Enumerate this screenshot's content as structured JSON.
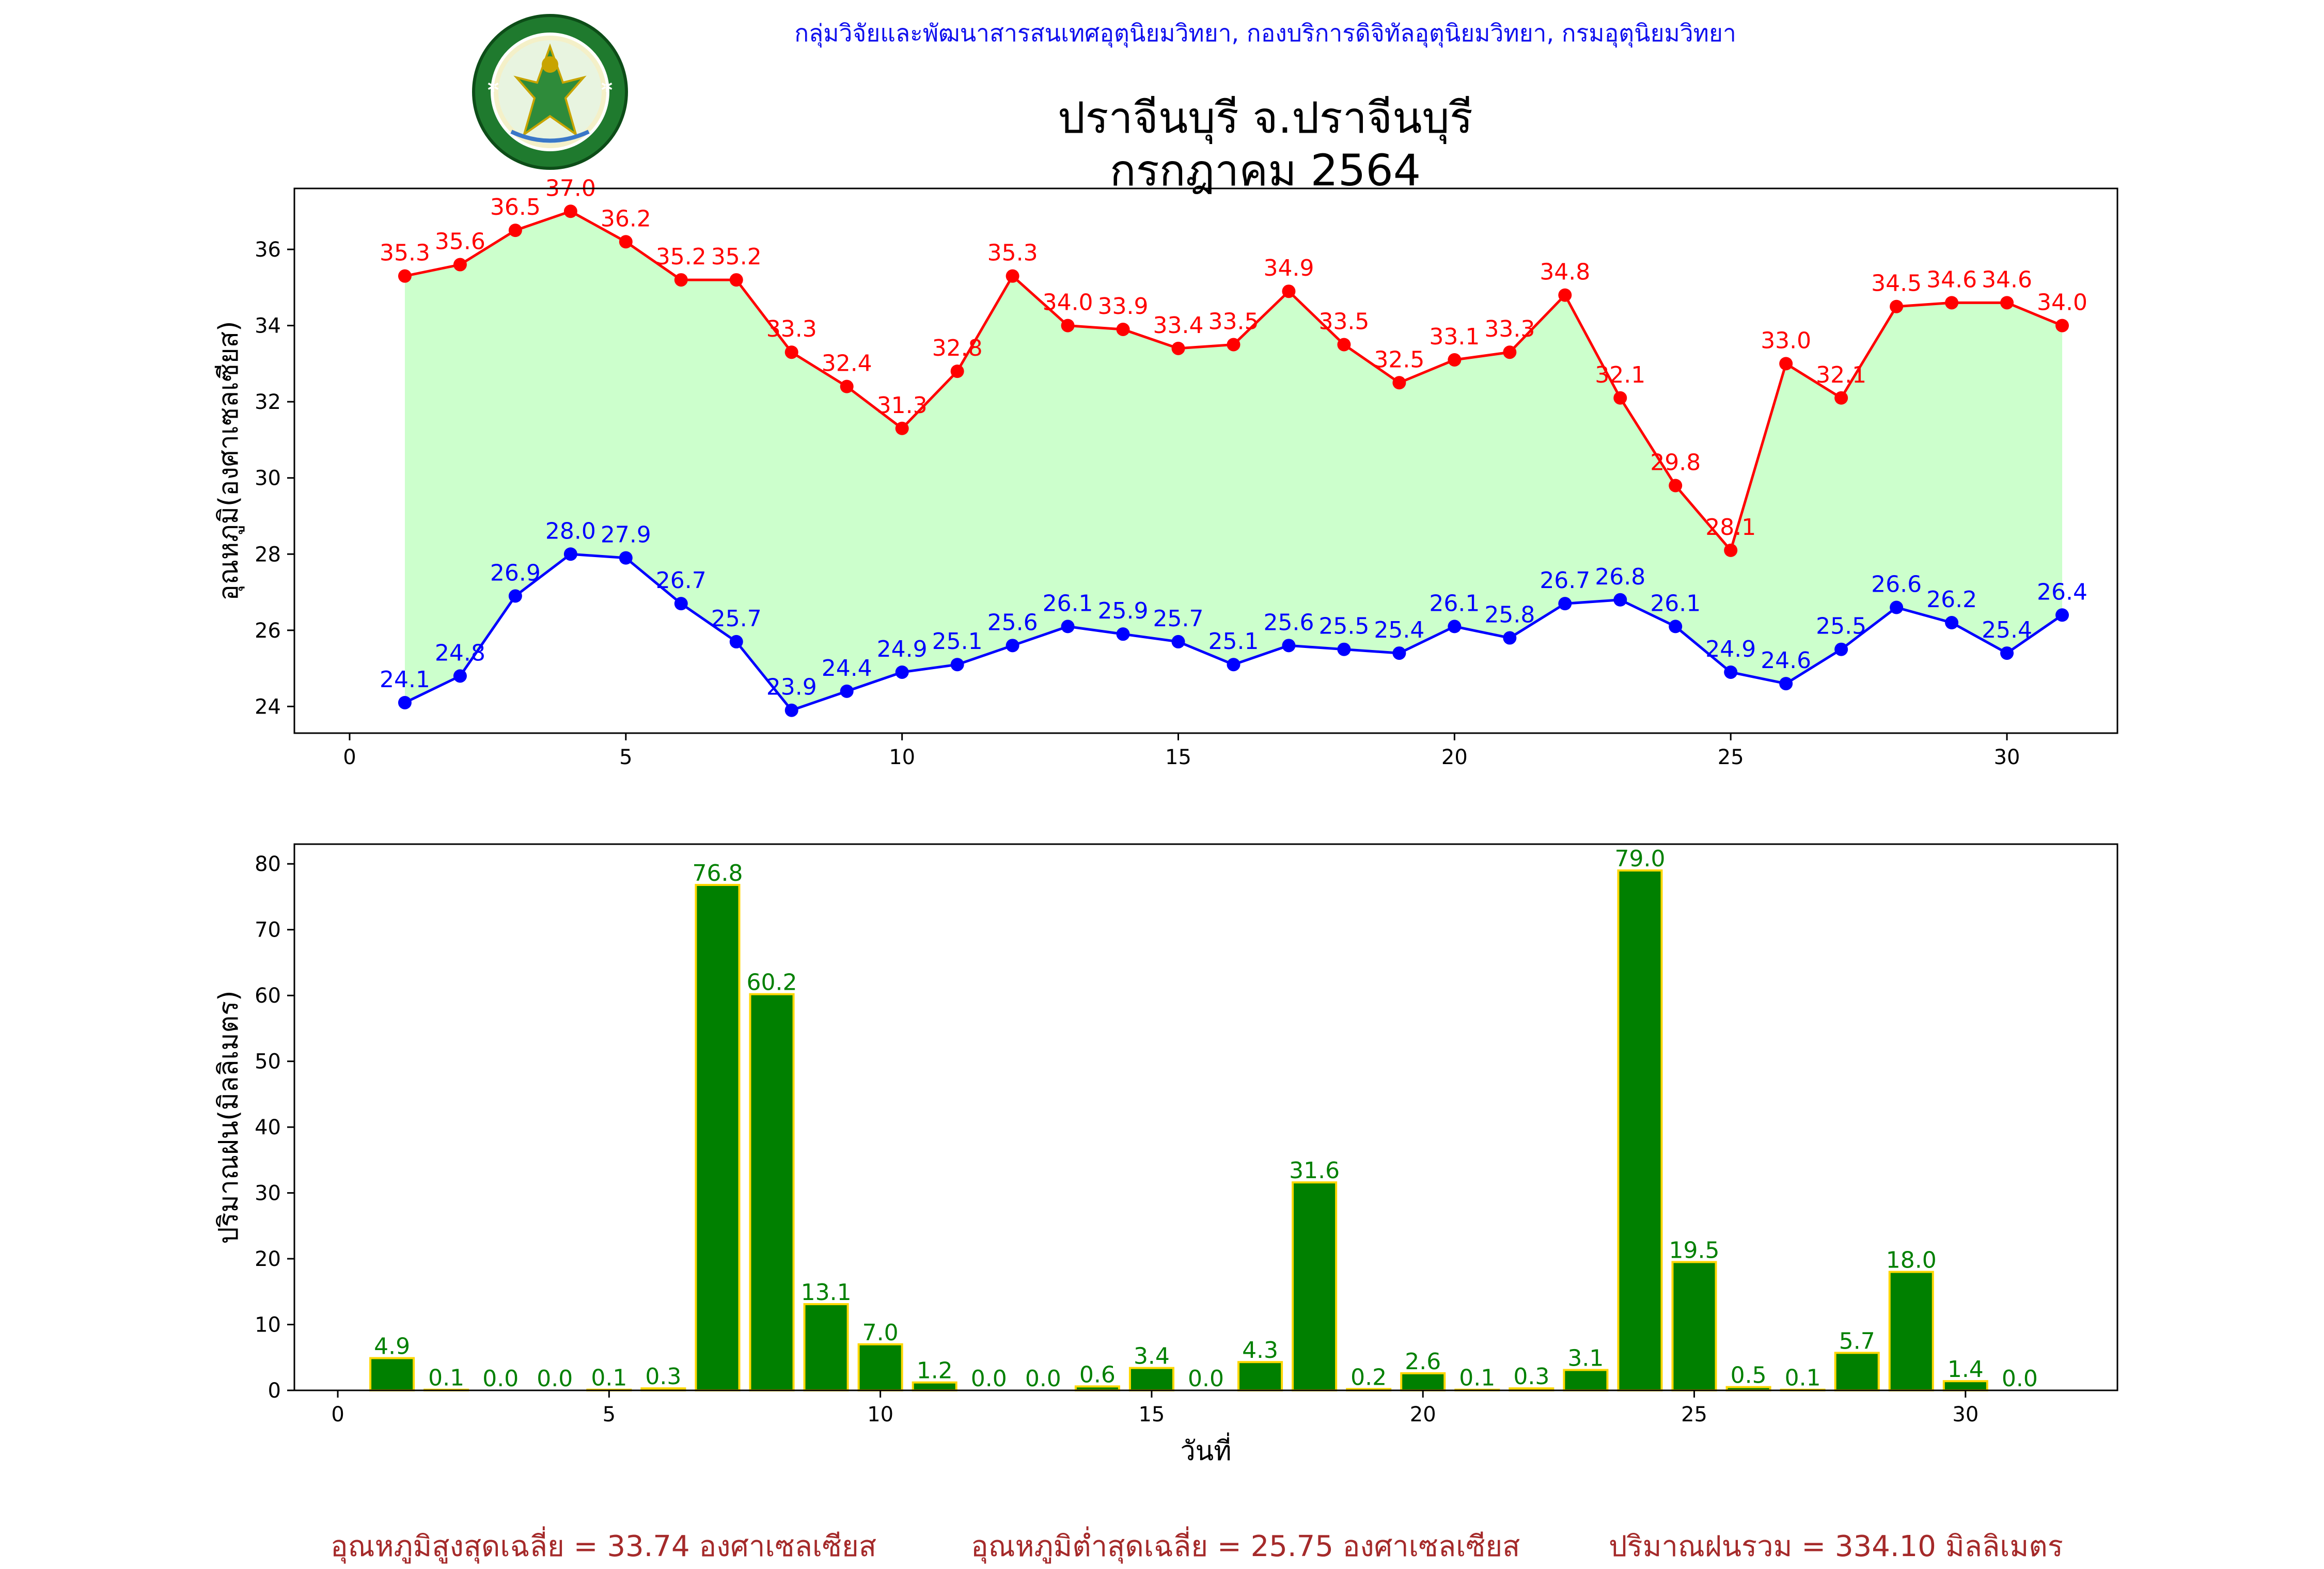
{
  "header": {
    "org_line": "กลุ่มวิจัยและพัฒนาสารสนเทศอุตุนิยมวิทยา, กองบริการดิจิทัลอุตุนิยมวิทยา, กรมอุตุนิยมวิทยา",
    "title_line1": "ปราจีนบุรี จ.ปราจีนบุรี",
    "title_line2": "กรกฎาคม 2564",
    "logo_icon": "meteorological-department-seal-icon",
    "logo_text_top": "กรมอุตุนิยมวิทยา",
    "logo_text_bottom": "METEOROLOGICAL DEPARTMENT"
  },
  "colors": {
    "max_line": "#ff0000",
    "min_line": "#0000ff",
    "fill_between": "#ccffcc",
    "bar_fill": "#008000",
    "bar_edge": "#ffd700",
    "bar_label": "#008000",
    "footer_text": "#a52a2a"
  },
  "chart_data": [
    {
      "type": "line",
      "ylabel": "อุณหภูมิ(องศาเซลเซียส)",
      "xlabel": "",
      "x": [
        1,
        2,
        3,
        4,
        5,
        6,
        7,
        8,
        9,
        10,
        11,
        12,
        13,
        14,
        15,
        16,
        17,
        18,
        19,
        20,
        21,
        22,
        23,
        24,
        25,
        26,
        27,
        28,
        29,
        30,
        31
      ],
      "xlim": [
        -1,
        32
      ],
      "ylim": [
        23.3,
        37.6
      ],
      "xticks": [
        0,
        5,
        10,
        15,
        20,
        25,
        30
      ],
      "yticks": [
        24,
        26,
        28,
        30,
        32,
        34,
        36
      ],
      "fill_between": true,
      "series": [
        {
          "key": "max",
          "values": [
            35.3,
            35.6,
            36.5,
            37.0,
            36.2,
            35.2,
            35.2,
            33.3,
            32.4,
            31.3,
            32.8,
            35.3,
            34.0,
            33.9,
            33.4,
            33.5,
            34.9,
            33.5,
            32.5,
            33.1,
            33.3,
            34.8,
            32.1,
            29.8,
            28.1,
            33.0,
            32.1,
            34.5,
            34.6,
            34.6,
            34.0
          ]
        },
        {
          "key": "min",
          "values": [
            24.1,
            24.8,
            26.9,
            28.0,
            27.9,
            26.7,
            25.7,
            23.9,
            24.4,
            24.9,
            25.1,
            25.6,
            26.1,
            25.9,
            25.7,
            25.1,
            25.6,
            25.5,
            25.4,
            26.1,
            25.8,
            26.7,
            26.8,
            26.1,
            24.9,
            24.6,
            25.5,
            26.6,
            26.2,
            25.4,
            26.4
          ]
        }
      ]
    },
    {
      "type": "bar",
      "ylabel": "ปริมาณฝน(มิลลิเมตร)",
      "xlabel": "วันที่",
      "x": [
        1,
        2,
        3,
        4,
        5,
        6,
        7,
        8,
        9,
        10,
        11,
        12,
        13,
        14,
        15,
        16,
        17,
        18,
        19,
        20,
        21,
        22,
        23,
        24,
        25,
        26,
        27,
        28,
        29,
        30,
        31
      ],
      "values": [
        4.9,
        0.1,
        0.0,
        0.0,
        0.1,
        0.3,
        76.8,
        60.2,
        13.1,
        7.0,
        1.2,
        0.0,
        0.0,
        0.6,
        3.4,
        0.0,
        4.3,
        31.6,
        0.2,
        2.6,
        0.1,
        0.3,
        3.1,
        79.0,
        19.5,
        0.5,
        0.1,
        5.7,
        18.0,
        1.4,
        0.0
      ],
      "xlim": [
        -0.8,
        32.8
      ],
      "ylim": [
        0,
        83
      ],
      "xticks": [
        0,
        5,
        10,
        15,
        20,
        25,
        30
      ],
      "yticks": [
        0,
        10,
        20,
        30,
        40,
        50,
        60,
        70,
        80
      ]
    }
  ],
  "footer": {
    "avg_max": "อุณหภูมิสูงสุดเฉลี่ย = 33.74 องศาเซลเซียส",
    "avg_min": "อุณหภูมิต่ำสุดเฉลี่ย = 25.75 องศาเซลเซียส",
    "rain_total": "ปริมาณฝนรวม = 334.10 มิลลิเมตร"
  }
}
